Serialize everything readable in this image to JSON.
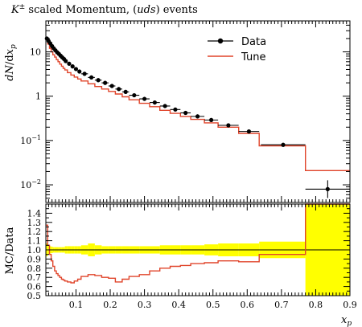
{
  "chart_data": [
    {
      "type": "line",
      "title_prefix": "K",
      "title_sup": "±",
      "title_rest": " scaled Momentum, (",
      "title_italic": "uds",
      "title_end": ") events",
      "ylabel": "dN/dx_p",
      "yscale": "log",
      "ylim": [
        0.004,
        50
      ],
      "xlim": [
        0.012,
        0.9
      ],
      "yticks": [
        {
          "value": 10,
          "base": "10",
          "exp": ""
        },
        {
          "value": 1,
          "base": "1",
          "exp": ""
        },
        {
          "value": 0.1,
          "base": "10",
          "exp": "−1"
        },
        {
          "value": 0.01,
          "base": "10",
          "exp": "−2"
        }
      ],
      "legend": {
        "position": "top-right",
        "entries": [
          "Data",
          "Tune"
        ]
      },
      "colors": {
        "data": "#000000",
        "tune": "#e0442a",
        "band": "#ffff00"
      },
      "series": [
        {
          "name": "Data",
          "x": [
            0.015,
            0.02,
            0.025,
            0.03,
            0.035,
            0.04,
            0.045,
            0.05,
            0.055,
            0.06,
            0.065,
            0.07,
            0.08,
            0.09,
            0.1,
            0.11,
            0.125,
            0.145,
            0.165,
            0.185,
            0.205,
            0.225,
            0.245,
            0.27,
            0.3,
            0.33,
            0.36,
            0.39,
            0.42,
            0.455,
            0.495,
            0.545,
            0.605,
            0.705,
            0.835
          ],
          "y": [
            20,
            17.5,
            15.5,
            13.5,
            12,
            10.8,
            9.8,
            9,
            8.2,
            7.5,
            6.9,
            6.2,
            5.4,
            4.7,
            4.1,
            3.6,
            3.2,
            2.65,
            2.3,
            2.0,
            1.7,
            1.45,
            1.25,
            1.05,
            0.87,
            0.72,
            0.6,
            0.5,
            0.42,
            0.35,
            0.29,
            0.22,
            0.16,
            0.08,
            0.008
          ],
          "xerr": [
            0.0025,
            0.0025,
            0.0025,
            0.0025,
            0.0025,
            0.0025,
            0.0025,
            0.0025,
            0.0025,
            0.0025,
            0.0025,
            0.005,
            0.005,
            0.005,
            0.005,
            0.005,
            0.01,
            0.01,
            0.01,
            0.01,
            0.01,
            0.01,
            0.01,
            0.015,
            0.015,
            0.015,
            0.015,
            0.015,
            0.015,
            0.02,
            0.02,
            0.03,
            0.03,
            0.065,
            0.065
          ]
        },
        {
          "name": "Tune",
          "edges": [
            0.012,
            0.0175,
            0.0225,
            0.0275,
            0.0325,
            0.0375,
            0.0425,
            0.0475,
            0.0525,
            0.0575,
            0.0625,
            0.0675,
            0.075,
            0.085,
            0.095,
            0.105,
            0.115,
            0.135,
            0.155,
            0.175,
            0.195,
            0.215,
            0.235,
            0.255,
            0.285,
            0.315,
            0.345,
            0.375,
            0.405,
            0.435,
            0.475,
            0.515,
            0.575,
            0.635,
            0.77,
            0.9
          ],
          "values": [
            19,
            15,
            12,
            10,
            8.6,
            7.6,
            6.7,
            6.0,
            5.3,
            4.75,
            4.25,
            3.9,
            3.4,
            3.0,
            2.7,
            2.45,
            2.2,
            1.9,
            1.65,
            1.45,
            1.28,
            1.12,
            0.97,
            0.83,
            0.69,
            0.58,
            0.48,
            0.41,
            0.35,
            0.3,
            0.25,
            0.2,
            0.145,
            0.076,
            0.021
          ]
        }
      ]
    },
    {
      "type": "line",
      "ylabel": "MC/Data",
      "xlabel": "x_p",
      "ylim": [
        0.5,
        1.5
      ],
      "xlim": [
        0.012,
        0.9
      ],
      "yticks": [
        0.5,
        0.6,
        0.7,
        0.8,
        0.9,
        1.0,
        1.1,
        1.2,
        1.3,
        1.4
      ],
      "xticks": [
        0.1,
        0.2,
        0.3,
        0.4,
        0.5,
        0.6,
        0.7,
        0.8,
        0.9
      ],
      "series": [
        {
          "name": "Tune",
          "edges": [
            0.012,
            0.0175,
            0.0225,
            0.0275,
            0.0325,
            0.0375,
            0.0425,
            0.0475,
            0.0525,
            0.0575,
            0.0625,
            0.0675,
            0.075,
            0.085,
            0.095,
            0.105,
            0.115,
            0.135,
            0.155,
            0.175,
            0.195,
            0.215,
            0.235,
            0.255,
            0.285,
            0.315,
            0.345,
            0.375,
            0.405,
            0.435,
            0.475,
            0.515,
            0.575,
            0.635,
            0.77,
            0.9
          ],
          "values": [
            1.27,
            1.05,
            0.95,
            0.88,
            0.82,
            0.77,
            0.74,
            0.72,
            0.7,
            0.68,
            0.67,
            0.66,
            0.65,
            0.64,
            0.66,
            0.68,
            0.71,
            0.73,
            0.72,
            0.7,
            0.69,
            0.65,
            0.68,
            0.71,
            0.73,
            0.77,
            0.8,
            0.82,
            0.83,
            0.85,
            0.86,
            0.88,
            0.87,
            0.95,
            1.5
          ]
        }
      ],
      "band": {
        "edges": [
          0.012,
          0.0175,
          0.0225,
          0.0275,
          0.0325,
          0.0375,
          0.0425,
          0.0475,
          0.0525,
          0.0575,
          0.0625,
          0.0675,
          0.075,
          0.085,
          0.095,
          0.105,
          0.115,
          0.135,
          0.155,
          0.175,
          0.195,
          0.215,
          0.235,
          0.255,
          0.285,
          0.315,
          0.345,
          0.375,
          0.405,
          0.435,
          0.475,
          0.515,
          0.575,
          0.635,
          0.77,
          0.9
        ],
        "half_width": [
          0.07,
          0.05,
          0.04,
          0.035,
          0.03,
          0.03,
          0.03,
          0.03,
          0.03,
          0.03,
          0.03,
          0.04,
          0.04,
          0.04,
          0.04,
          0.04,
          0.05,
          0.07,
          0.05,
          0.04,
          0.04,
          0.04,
          0.04,
          0.04,
          0.04,
          0.04,
          0.05,
          0.05,
          0.05,
          0.05,
          0.06,
          0.07,
          0.07,
          0.09,
          0.6
        ]
      }
    }
  ]
}
